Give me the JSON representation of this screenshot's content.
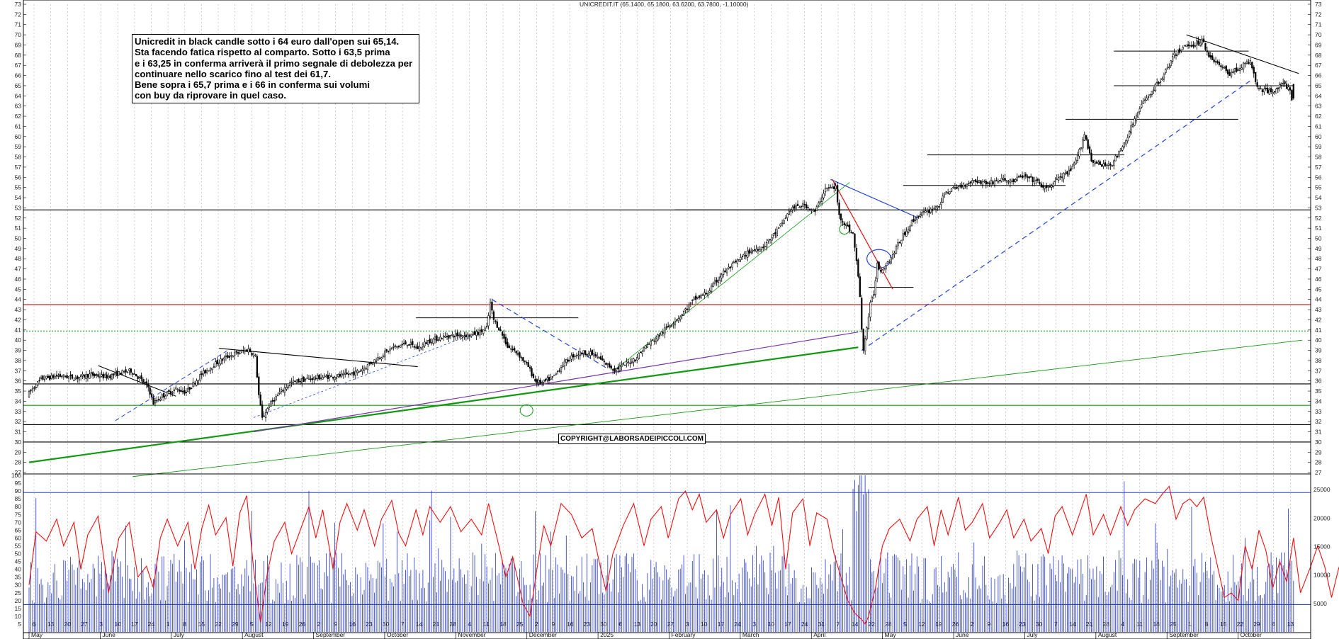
{
  "header": {
    "ticker_line": "UNICREDIT.IT (65.1400, 65.1800, 63.6200, 63.7800, -1.10000)"
  },
  "note": {
    "lines": [
      "Unicredit in black candle sotto i 64 euro dall'open sui 65,14.",
      "Sta facendo fatica rispetto al comparto. Sotto i 63,5 prima",
      "e i 63,25 in conferma arriverà il primo segnale di debolezza per",
      "continuare nello scarico fino al test dei 61,7.",
      "Bene sopra i 65,7 prima e i 66 in conferma sui volumi",
      "con buy da riprovare in quel caso."
    ]
  },
  "copyright": "COPYRIGHT@LABORSADEIPICCOLI.COM",
  "colors": {
    "candle_up": "#ffffff",
    "candle_down": "#000000",
    "rsi": "#ee1111",
    "volume": "#2233cc",
    "hline": "#000000",
    "resistance_red": "#dd1111",
    "support_green": "#119911",
    "trend_blue": "#2244dd",
    "trend_purple": "#7733aa",
    "grid": "#b0b0b0"
  },
  "chart_data": [
    {
      "type": "candlestick",
      "title": "UNICREDIT.IT (65.1400, 65.1800, 63.6200, 63.7800, -1.10000)",
      "ylim": [
        27,
        73
      ],
      "y_ticks": [
        27,
        28,
        29,
        30,
        31,
        32,
        33,
        34,
        35,
        36,
        37,
        38,
        39,
        40,
        41,
        42,
        43,
        44,
        45,
        46,
        47,
        48,
        49,
        50,
        51,
        52,
        53,
        54,
        55,
        56,
        57,
        58,
        59,
        60,
        61,
        62,
        63,
        64,
        65,
        66,
        67,
        68,
        69,
        70,
        71,
        72,
        73
      ],
      "last_bar": {
        "open": 65.14,
        "high": 65.18,
        "low": 63.62,
        "close": 63.78,
        "change": -1.1
      },
      "price_path": [
        [
          0,
          34.6
        ],
        [
          8,
          36.2
        ],
        [
          18,
          36.5
        ],
        [
          28,
          36.3
        ],
        [
          36,
          36.6
        ],
        [
          46,
          36.4
        ],
        [
          54,
          36.8
        ],
        [
          60,
          37.0
        ],
        [
          64,
          36.4
        ],
        [
          70,
          35.4
        ],
        [
          73,
          33.8
        ],
        [
          78,
          34.5
        ],
        [
          86,
          35.2
        ],
        [
          92,
          34.9
        ],
        [
          100,
          36.5
        ],
        [
          108,
          37.6
        ],
        [
          116,
          38.4
        ],
        [
          123,
          38.8
        ],
        [
          128,
          39.1
        ],
        [
          132,
          38.4
        ],
        [
          134,
          34.6
        ],
        [
          136,
          32.3
        ],
        [
          140,
          33.6
        ],
        [
          146,
          34.8
        ],
        [
          152,
          35.8
        ],
        [
          162,
          36.2
        ],
        [
          172,
          36.4
        ],
        [
          182,
          36.5
        ],
        [
          190,
          36.8
        ],
        [
          196,
          37.4
        ],
        [
          204,
          38.4
        ],
        [
          212,
          39.3
        ],
        [
          220,
          39.7
        ],
        [
          226,
          39.2
        ],
        [
          232,
          39.9
        ],
        [
          240,
          40.3
        ],
        [
          248,
          40.5
        ],
        [
          256,
          40.5
        ],
        [
          262,
          40.8
        ],
        [
          266,
          41.2
        ],
        [
          268,
          43.6
        ],
        [
          270,
          42.0
        ],
        [
          274,
          40.9
        ],
        [
          278,
          39.4
        ],
        [
          284,
          38.7
        ],
        [
          290,
          37.4
        ],
        [
          294,
          36.0
        ],
        [
          298,
          35.8
        ],
        [
          304,
          36.3
        ],
        [
          310,
          37.6
        ],
        [
          316,
          38.5
        ],
        [
          322,
          38.8
        ],
        [
          328,
          38.6
        ],
        [
          334,
          37.8
        ],
        [
          340,
          37.1
        ],
        [
          346,
          37.6
        ],
        [
          352,
          38.2
        ],
        [
          358,
          39.4
        ],
        [
          364,
          40.2
        ],
        [
          370,
          41.2
        ],
        [
          378,
          42.4
        ],
        [
          386,
          44.0
        ],
        [
          394,
          44.7
        ],
        [
          402,
          46.5
        ],
        [
          410,
          47.6
        ],
        [
          418,
          48.7
        ],
        [
          426,
          49.2
        ],
        [
          434,
          50.7
        ],
        [
          442,
          52.9
        ],
        [
          450,
          53.3
        ],
        [
          456,
          52.6
        ],
        [
          462,
          54.9
        ],
        [
          468,
          55.0
        ],
        [
          470,
          52.2
        ],
        [
          474,
          51.3
        ],
        [
          478,
          50.4
        ],
        [
          480,
          47.8
        ],
        [
          482,
          44.4
        ],
        [
          483,
          40.9
        ],
        [
          484,
          39.2
        ],
        [
          486,
          41.2
        ],
        [
          488,
          43.5
        ],
        [
          490,
          44.6
        ],
        [
          492,
          47.5
        ],
        [
          494,
          46.8
        ],
        [
          496,
          47.3
        ],
        [
          500,
          48.1
        ],
        [
          506,
          50.0
        ],
        [
          512,
          51.6
        ],
        [
          516,
          52.3
        ],
        [
          522,
          52.7
        ],
        [
          528,
          53.3
        ],
        [
          532,
          54.6
        ],
        [
          540,
          55.1
        ],
        [
          548,
          55.7
        ],
        [
          556,
          55.4
        ],
        [
          564,
          55.8
        ],
        [
          570,
          55.6
        ],
        [
          576,
          56.1
        ],
        [
          584,
          55.6
        ],
        [
          590,
          54.8
        ],
        [
          596,
          55.8
        ],
        [
          604,
          56.6
        ],
        [
          608,
          58.0
        ],
        [
          612,
          60.3
        ],
        [
          616,
          57.7
        ],
        [
          622,
          57.1
        ],
        [
          628,
          57.4
        ],
        [
          634,
          58.9
        ],
        [
          640,
          61.3
        ],
        [
          646,
          63.4
        ],
        [
          652,
          64.7
        ],
        [
          658,
          66.1
        ],
        [
          664,
          68.0
        ],
        [
          670,
          68.9
        ],
        [
          676,
          69.1
        ],
        [
          680,
          69.5
        ],
        [
          684,
          68.0
        ],
        [
          690,
          67.0
        ],
        [
          696,
          66.2
        ],
        [
          702,
          66.8
        ],
        [
          708,
          67.4
        ],
        [
          712,
          64.8
        ],
        [
          718,
          64.4
        ],
        [
          722,
          64.6
        ],
        [
          726,
          65.1
        ],
        [
          730,
          64.9
        ],
        [
          732,
          63.8
        ]
      ],
      "horizontal_levels": [
        {
          "value": 40.9,
          "style": "dotted",
          "color": "support_green"
        },
        {
          "value": 43.5,
          "style": "solid",
          "color": "resistance_red"
        },
        {
          "value": 52.8,
          "style": "solid",
          "color": "hline"
        },
        {
          "value": 35.7,
          "style": "solid",
          "color": "hline"
        },
        {
          "value": 33.6,
          "style": "solid",
          "color": "support_green"
        },
        {
          "value": 31.7,
          "style": "solid",
          "color": "hline"
        },
        {
          "value": 30.0,
          "style": "solid",
          "color": "hline"
        }
      ],
      "x_axis": {
        "day_ticks": [
          "6",
          "13",
          "20",
          "27",
          "3",
          "10",
          "17",
          "24",
          "1",
          "8",
          "15",
          "22",
          "29",
          "5",
          "12",
          "19",
          "26",
          "2",
          "9",
          "16",
          "23",
          "30",
          "7",
          "14",
          "21",
          "28",
          "4",
          "11",
          "18",
          "25",
          "2",
          "9",
          "16",
          "23",
          "30",
          "6",
          "13",
          "20",
          "27",
          "3",
          "10",
          "17",
          "24",
          "3",
          "10",
          "17",
          "24",
          "31",
          "7",
          "14",
          "22",
          "28",
          "5",
          "12",
          "19",
          "26",
          "2",
          "9",
          "16",
          "23",
          "30",
          "7",
          "14",
          "21",
          "28",
          "4",
          "11",
          "18",
          "25",
          "1",
          "8",
          "15",
          "22",
          "29",
          "6",
          "13"
        ],
        "month_labels": [
          "May",
          "June",
          "July",
          "August",
          "September",
          "October",
          "November",
          "December",
          "2025",
          "February",
          "March",
          "April",
          "May",
          "June",
          "July",
          "August",
          "September",
          "October"
        ]
      }
    },
    {
      "type": "line",
      "series": [
        {
          "name": "",
          "role": "oscillator"
        }
      ],
      "ylim": [
        0,
        100
      ],
      "y_ticks": [
        5,
        10,
        15,
        20,
        25,
        30,
        35,
        40,
        45,
        50,
        55,
        60,
        65,
        70,
        75,
        80,
        85,
        90,
        95,
        100
      ],
      "reference_level": 89,
      "osc_path": [
        [
          0,
          30
        ],
        [
          4,
          64
        ],
        [
          10,
          58
        ],
        [
          16,
          72
        ],
        [
          20,
          55
        ],
        [
          26,
          70
        ],
        [
          30,
          40
        ],
        [
          34,
          62
        ],
        [
          40,
          74
        ],
        [
          46,
          25
        ],
        [
          52,
          60
        ],
        [
          58,
          70
        ],
        [
          63,
          35
        ],
        [
          68,
          42
        ],
        [
          72,
          28
        ],
        [
          76,
          60
        ],
        [
          80,
          72
        ],
        [
          86,
          55
        ],
        [
          92,
          70
        ],
        [
          96,
          40
        ],
        [
          100,
          66
        ],
        [
          104,
          81
        ],
        [
          108,
          62
        ],
        [
          114,
          73
        ],
        [
          118,
          42
        ],
        [
          122,
          76
        ],
        [
          126,
          87
        ],
        [
          130,
          40
        ],
        [
          134,
          6
        ],
        [
          138,
          38
        ],
        [
          142,
          58
        ],
        [
          148,
          70
        ],
        [
          152,
          50
        ],
        [
          156,
          62
        ],
        [
          162,
          80
        ],
        [
          166,
          60
        ],
        [
          170,
          78
        ],
        [
          176,
          40
        ],
        [
          180,
          70
        ],
        [
          184,
          82
        ],
        [
          190,
          65
        ],
        [
          194,
          78
        ],
        [
          200,
          55
        ],
        [
          204,
          72
        ],
        [
          210,
          84
        ],
        [
          214,
          63
        ],
        [
          218,
          55
        ],
        [
          224,
          78
        ],
        [
          228,
          62
        ],
        [
          232,
          80
        ],
        [
          238,
          70
        ],
        [
          244,
          80
        ],
        [
          250,
          64
        ],
        [
          256,
          72
        ],
        [
          262,
          62
        ],
        [
          266,
          82
        ],
        [
          272,
          55
        ],
        [
          276,
          35
        ],
        [
          280,
          48
        ],
        [
          286,
          18
        ],
        [
          290,
          10
        ],
        [
          294,
          40
        ],
        [
          298,
          68
        ],
        [
          302,
          55
        ],
        [
          308,
          82
        ],
        [
          314,
          75
        ],
        [
          320,
          60
        ],
        [
          326,
          66
        ],
        [
          330,
          45
        ],
        [
          334,
          26
        ],
        [
          338,
          50
        ],
        [
          344,
          68
        ],
        [
          350,
          82
        ],
        [
          356,
          55
        ],
        [
          360,
          72
        ],
        [
          366,
          80
        ],
        [
          370,
          60
        ],
        [
          376,
          85
        ],
        [
          380,
          90
        ],
        [
          384,
          78
        ],
        [
          388,
          88
        ],
        [
          392,
          70
        ],
        [
          398,
          78
        ],
        [
          402,
          60
        ],
        [
          406,
          75
        ],
        [
          412,
          85
        ],
        [
          416,
          62
        ],
        [
          420,
          75
        ],
        [
          426,
          88
        ],
        [
          430,
          68
        ],
        [
          434,
          86
        ],
        [
          438,
          40
        ],
        [
          442,
          76
        ],
        [
          448,
          85
        ],
        [
          452,
          55
        ],
        [
          456,
          76
        ],
        [
          462,
          72
        ],
        [
          466,
          50
        ],
        [
          470,
          35
        ],
        [
          474,
          20
        ],
        [
          478,
          12
        ],
        [
          482,
          8
        ],
        [
          484,
          5
        ],
        [
          486,
          10
        ],
        [
          490,
          28
        ],
        [
          494,
          55
        ],
        [
          498,
          66
        ],
        [
          504,
          72
        ],
        [
          510,
          58
        ],
        [
          514,
          72
        ],
        [
          520,
          80
        ],
        [
          524,
          55
        ],
        [
          528,
          78
        ],
        [
          532,
          62
        ],
        [
          538,
          86
        ],
        [
          542,
          65
        ],
        [
          546,
          70
        ],
        [
          552,
          82
        ],
        [
          556,
          60
        ],
        [
          562,
          70
        ],
        [
          566,
          78
        ],
        [
          570,
          60
        ],
        [
          576,
          72
        ],
        [
          580,
          58
        ],
        [
          586,
          66
        ],
        [
          590,
          50
        ],
        [
          594,
          74
        ],
        [
          598,
          80
        ],
        [
          604,
          62
        ],
        [
          608,
          75
        ],
        [
          612,
          88
        ],
        [
          616,
          62
        ],
        [
          622,
          75
        ],
        [
          626,
          62
        ],
        [
          632,
          80
        ],
        [
          636,
          68
        ],
        [
          640,
          78
        ],
        [
          646,
          85
        ],
        [
          652,
          82
        ],
        [
          656,
          88
        ],
        [
          660,
          93
        ],
        [
          664,
          72
        ],
        [
          668,
          82
        ],
        [
          672,
          85
        ],
        [
          676,
          80
        ],
        [
          680,
          86
        ],
        [
          684,
          62
        ],
        [
          688,
          42
        ],
        [
          692,
          22
        ],
        [
          696,
          25
        ],
        [
          700,
          20
        ],
        [
          704,
          55
        ],
        [
          708,
          40
        ],
        [
          712,
          65
        ],
        [
          716,
          52
        ],
        [
          720,
          28
        ],
        [
          724,
          45
        ],
        [
          728,
          32
        ],
        [
          732,
          60
        ],
        [
          736,
          25
        ],
        [
          742,
          42
        ],
        [
          746,
          55
        ],
        [
          750,
          42
        ],
        [
          754,
          22
        ],
        [
          758,
          40
        ],
        [
          762,
          55
        ],
        [
          766,
          62
        ],
        [
          770,
          52
        ],
        [
          774,
          38
        ],
        [
          778,
          24
        ]
      ],
      "volume_ylim": [
        0,
        27500
      ],
      "volume_ticks": [
        5000,
        10000,
        15000,
        20000,
        25000
      ],
      "volume_reference": 4800
    }
  ]
}
